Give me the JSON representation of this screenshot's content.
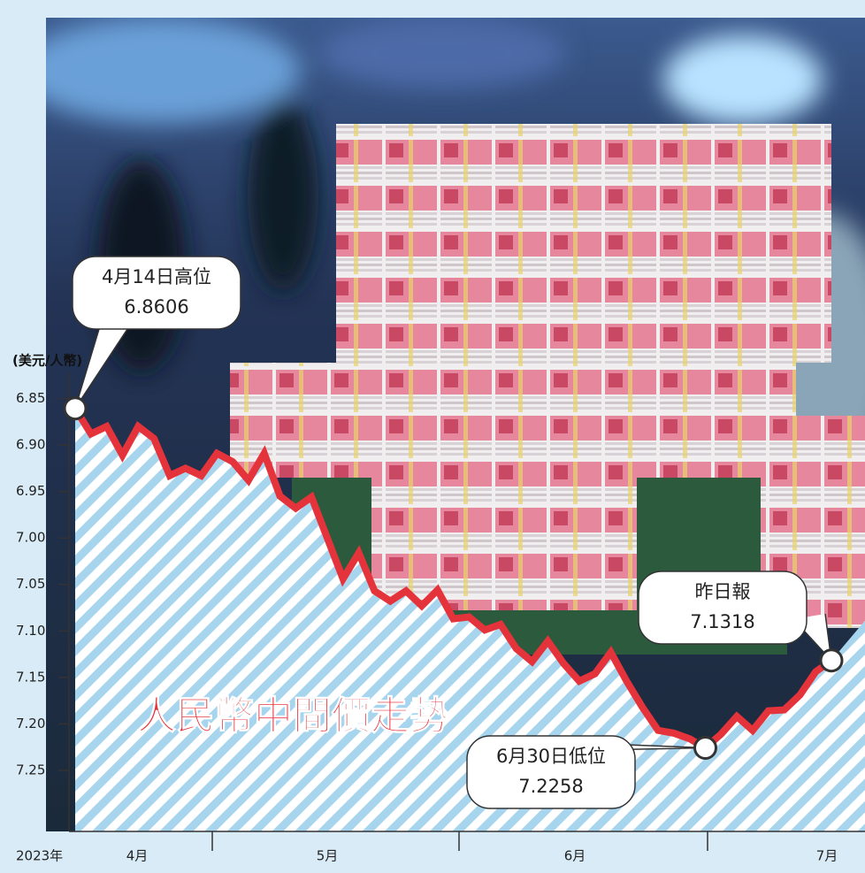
{
  "chart_data": {
    "type": "line",
    "title": "人民幣中間價走勢",
    "y_axis_label": "(美元/人幣)",
    "year_label": "2023年",
    "x_axis_labels": [
      "4月",
      "5月",
      "6月",
      "7月"
    ],
    "categories": [
      null,
      null,
      null,
      null,
      null,
      null,
      null,
      null,
      null,
      null,
      null,
      null,
      null,
      null,
      null,
      null,
      null,
      null,
      null,
      null,
      null,
      null,
      null,
      null,
      null,
      null,
      null,
      null,
      null,
      null,
      null,
      null,
      null,
      null,
      null,
      null,
      null,
      null,
      null,
      null,
      null,
      null,
      null,
      null,
      null,
      null,
      null,
      null,
      null
    ],
    "values": [
      6.8606,
      6.888,
      6.88,
      6.911,
      6.88,
      6.893,
      6.933,
      6.925,
      6.933,
      6.909,
      6.918,
      6.938,
      6.909,
      6.955,
      6.968,
      6.956,
      7.0,
      7.044,
      7.016,
      7.057,
      7.068,
      7.057,
      7.073,
      7.056,
      7.087,
      7.085,
      7.099,
      7.093,
      7.119,
      7.133,
      7.111,
      7.135,
      7.154,
      7.146,
      7.123,
      7.154,
      7.182,
      7.207,
      7.21,
      7.216,
      7.2258,
      7.211,
      7.192,
      7.207,
      7.186,
      7.185,
      7.169,
      7.144,
      7.1318
    ],
    "color": "#e5333b",
    "ylim": [
      6.8,
      7.3157
    ],
    "inverted_y": true,
    "yticks": [
      {
        "value": 6.85,
        "label": "6.85"
      },
      {
        "value": 6.9,
        "label": "6.90"
      },
      6.95,
      {
        "value": 7.0,
        "label": "7.00"
      },
      7.05,
      {
        "value": 7.1,
        "label": "7.10"
      },
      7.15,
      {
        "value": 7.2,
        "label": "7.20"
      },
      7.25
    ],
    "annotations": [
      {
        "text": "4月14日高位",
        "index": 0
      },
      {
        "text": "6月30日低位",
        "index": 40
      },
      {
        "text": "昨日報",
        "index": 48
      }
    ]
  }
}
